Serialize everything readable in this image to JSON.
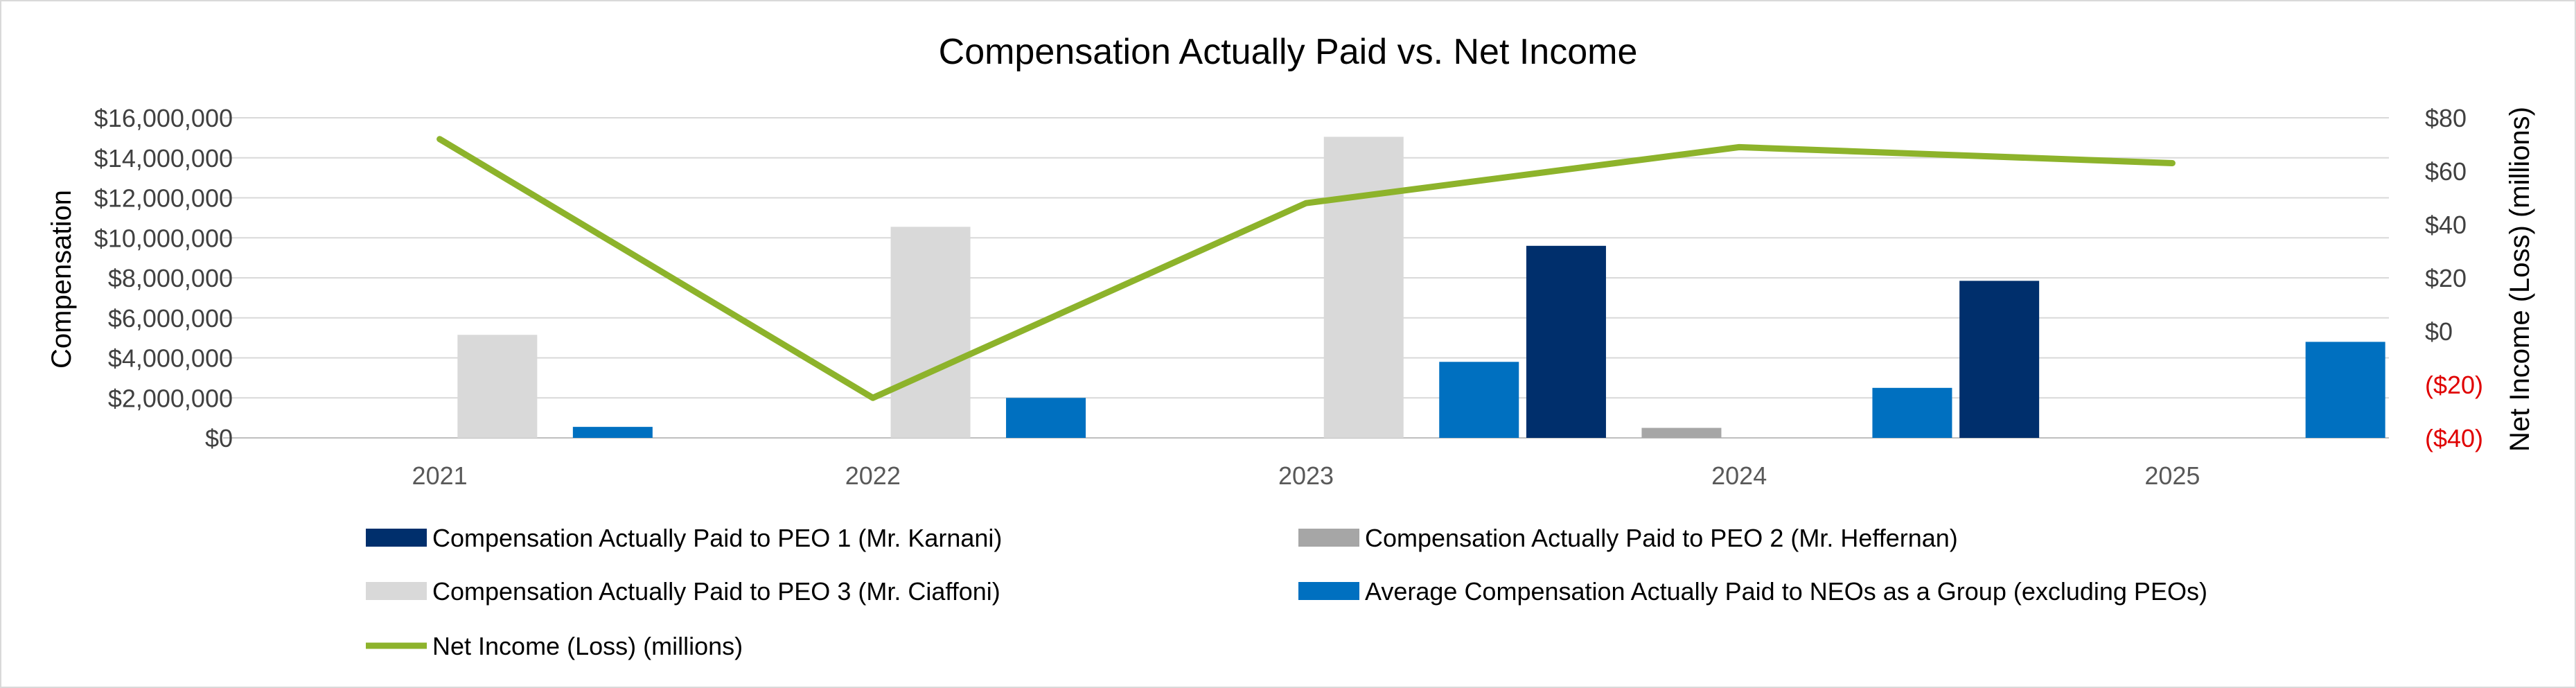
{
  "chart_data": {
    "type": "bar",
    "title": "Compensation Actually Paid vs. Net Income",
    "categories": [
      "2021",
      "2022",
      "2023",
      "2024",
      "2025"
    ],
    "ylabel_left": "Compensation",
    "ylabel_right": "Net Income (Loss) (millions)",
    "y_left_range": [
      0,
      16000000
    ],
    "y_left_ticks": [
      "$0",
      "$2,000,000",
      "$4,000,000",
      "$6,000,000",
      "$8,000,000",
      "$10,000,000",
      "$12,000,000",
      "$14,000,000",
      "$16,000,000"
    ],
    "y_right_range": [
      -40,
      80
    ],
    "y_right_ticks": [
      {
        "label": "($40)",
        "value": -40,
        "color": "#e00000"
      },
      {
        "label": "($20)",
        "value": -20,
        "color": "#e00000"
      },
      {
        "label": "$0",
        "value": 0,
        "color": "#404040"
      },
      {
        "label": "$20",
        "value": 20,
        "color": "#404040"
      },
      {
        "label": "$40",
        "value": 40,
        "color": "#404040"
      },
      {
        "label": "$60",
        "value": 60,
        "color": "#404040"
      },
      {
        "label": "$80",
        "value": 80,
        "color": "#404040"
      }
    ],
    "series": [
      {
        "name": "Compensation Actually Paid to PEO 1 (Mr. Karnani)",
        "color": "#002f6c",
        "axis": "left",
        "values": [
          0,
          0,
          0,
          9600000,
          7850000
        ]
      },
      {
        "name": "Compensation Actually Paid to PEO 2 (Mr. Heffernan)",
        "color": "#a6a6a6",
        "axis": "left",
        "values": [
          0,
          0,
          0,
          500000,
          0
        ]
      },
      {
        "name": "Compensation Actually Paid to PEO 3 (Mr. Ciaffoni)",
        "color": "#d9d9d9",
        "axis": "left",
        "values": [
          5150000,
          10550000,
          15050000,
          0,
          0
        ]
      },
      {
        "name": "Average Compensation Actually Paid to NEOs as a Group (excluding PEOs)",
        "color": "#0070c0",
        "axis": "left",
        "values": [
          550000,
          2000000,
          3800000,
          2500000,
          4800000
        ]
      }
    ],
    "line_series": {
      "name": "Net Income (Loss) (millions)",
      "color": "#8db32b",
      "axis": "right",
      "values": [
        72,
        -25,
        48,
        69,
        63
      ]
    },
    "grid": true,
    "legend_position": "bottom"
  }
}
